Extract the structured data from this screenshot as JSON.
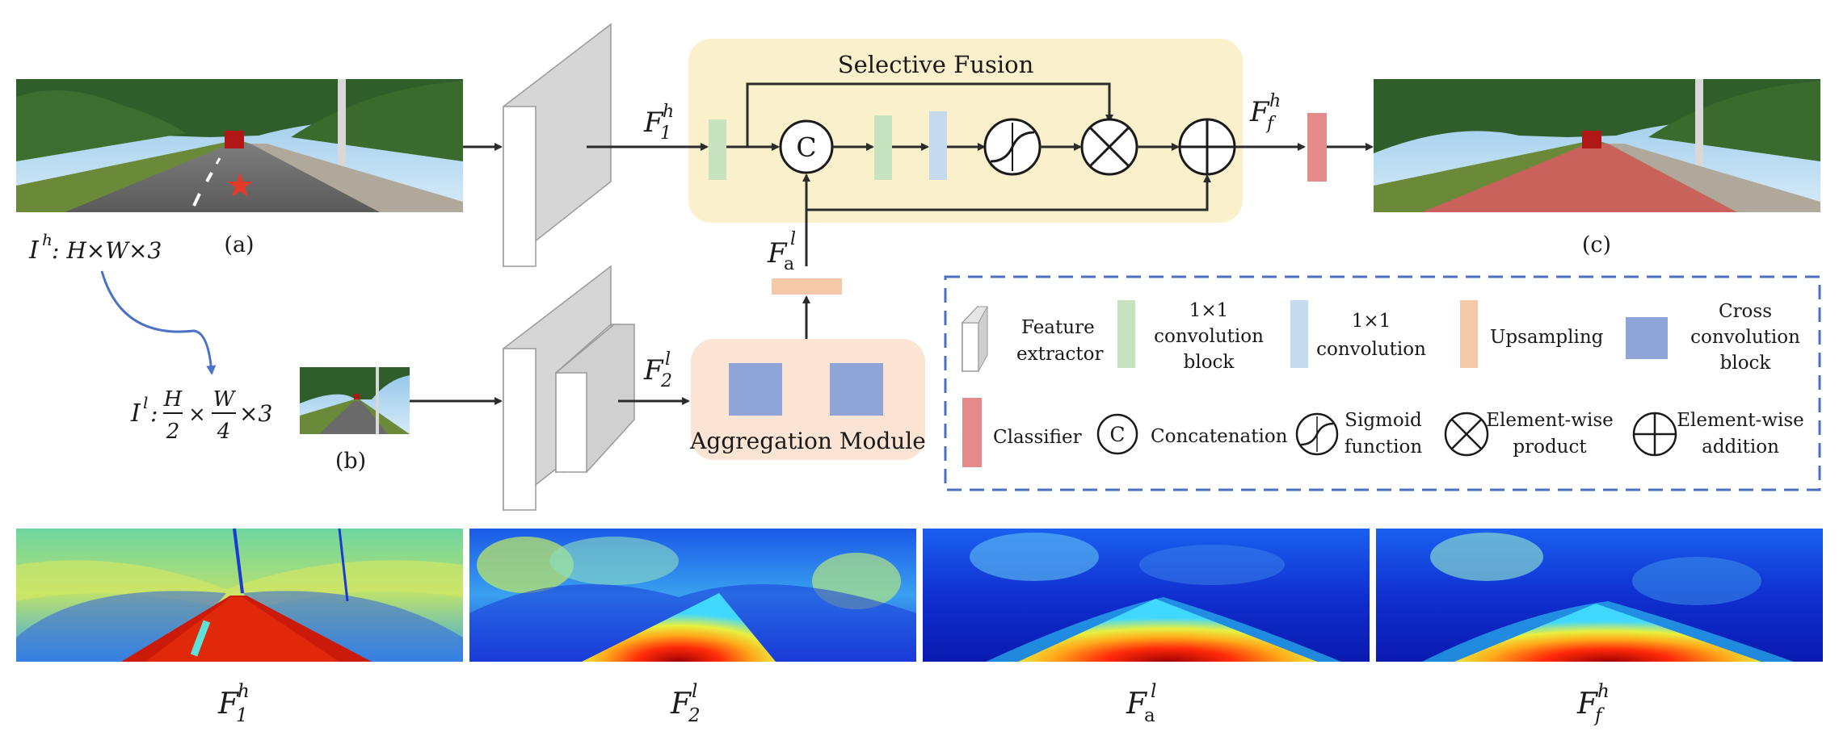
{
  "selective_fusion": {
    "title": "Selective Fusion"
  },
  "aggregation": {
    "title": "Aggregation Module"
  },
  "captions": {
    "a": "(a)",
    "b": "(b)",
    "c": "(c)"
  },
  "input_high": {
    "base": "I",
    "sup": "h",
    "dims": ": H×W×3"
  },
  "input_low": {
    "base": "I",
    "sup": "l",
    "colon": ":",
    "h": "H",
    "w": "W",
    "two": "2",
    "four": "4",
    "times": "×",
    "three": "×3"
  },
  "symbols": {
    "concat": "C",
    "f1h": {
      "base": "F",
      "sub": "1",
      "sup": "h"
    },
    "f2l": {
      "base": "F",
      "sub": "2",
      "sup": "l"
    },
    "fal": {
      "base": "F",
      "sub": "a",
      "sup": "l"
    },
    "ffh": {
      "base": "F",
      "sub": "f",
      "sup": "h"
    }
  },
  "legend": {
    "feature_extractor": [
      "Feature",
      "extractor"
    ],
    "conv1x1_block": [
      "1×1",
      "convolution",
      "block"
    ],
    "conv1x1": [
      "1×1",
      "convolution"
    ],
    "upsampling": "Upsampling",
    "cross_conv": [
      "Cross",
      "convolution",
      "block"
    ],
    "classifier": "Classifier",
    "concatenation": "Concatenation",
    "sigmoid": [
      "Sigmoid",
      "function"
    ],
    "product": [
      "Element-wise",
      "product"
    ],
    "addition": [
      "Element-wise",
      "addition"
    ]
  },
  "feature_maps": [
    {
      "base": "F",
      "sub": "1",
      "sup": "h"
    },
    {
      "base": "F",
      "sub": "2",
      "sup": "l"
    },
    {
      "base": "F",
      "sub": "a",
      "sup": "l"
    },
    {
      "base": "F",
      "sub": "f",
      "sup": "h"
    }
  ],
  "colors": {
    "fusion_bg": "#fbf0cc",
    "aggregation_bg": "#fbe4d4",
    "green_block": "#c6e2be",
    "blue_block": "#c6daee",
    "upsample_block": "#f5c9a8",
    "cross_block": "#8fa5d8",
    "classifier": "#e48a8a",
    "legend_border": "#4a6fc4",
    "arrow": "#2b2b2b",
    "curve": "#4a72c8"
  }
}
